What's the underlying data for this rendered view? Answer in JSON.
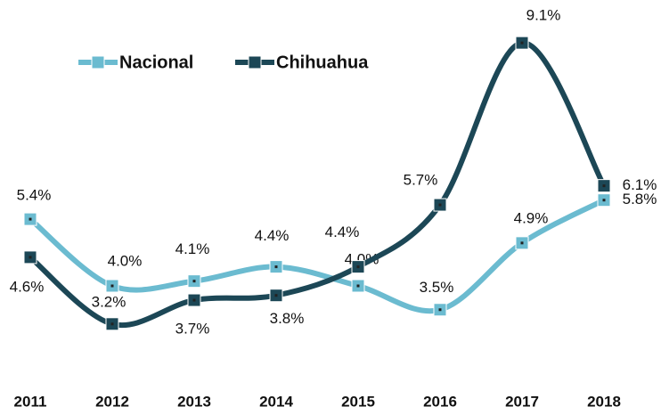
{
  "chart_data": {
    "type": "line",
    "categories": [
      "2011",
      "2012",
      "2013",
      "2014",
      "2015",
      "2016",
      "2017",
      "2018"
    ],
    "series": [
      {
        "name": "Nacional",
        "color": "#6bbbd0",
        "values": [
          5.4,
          4.0,
          4.1,
          4.4,
          4.0,
          3.5,
          4.9,
          5.8
        ],
        "value_labels": [
          "5.4%",
          "4.0%",
          "4.1%",
          "4.4%",
          "4.0%",
          "3.5%",
          "4.9%",
          "5.8%"
        ]
      },
      {
        "name": "Chihuahua",
        "color": "#1c4756",
        "values": [
          4.6,
          3.2,
          3.7,
          3.8,
          4.4,
          5.7,
          9.1,
          6.1
        ],
        "value_labels": [
          "4.6%",
          "3.2%",
          "3.7%",
          "3.8%",
          "4.4%",
          "5.7%",
          "9.1%",
          "6.1%"
        ]
      }
    ],
    "ylim": [
      2,
      10
    ],
    "legend": "top-left"
  }
}
